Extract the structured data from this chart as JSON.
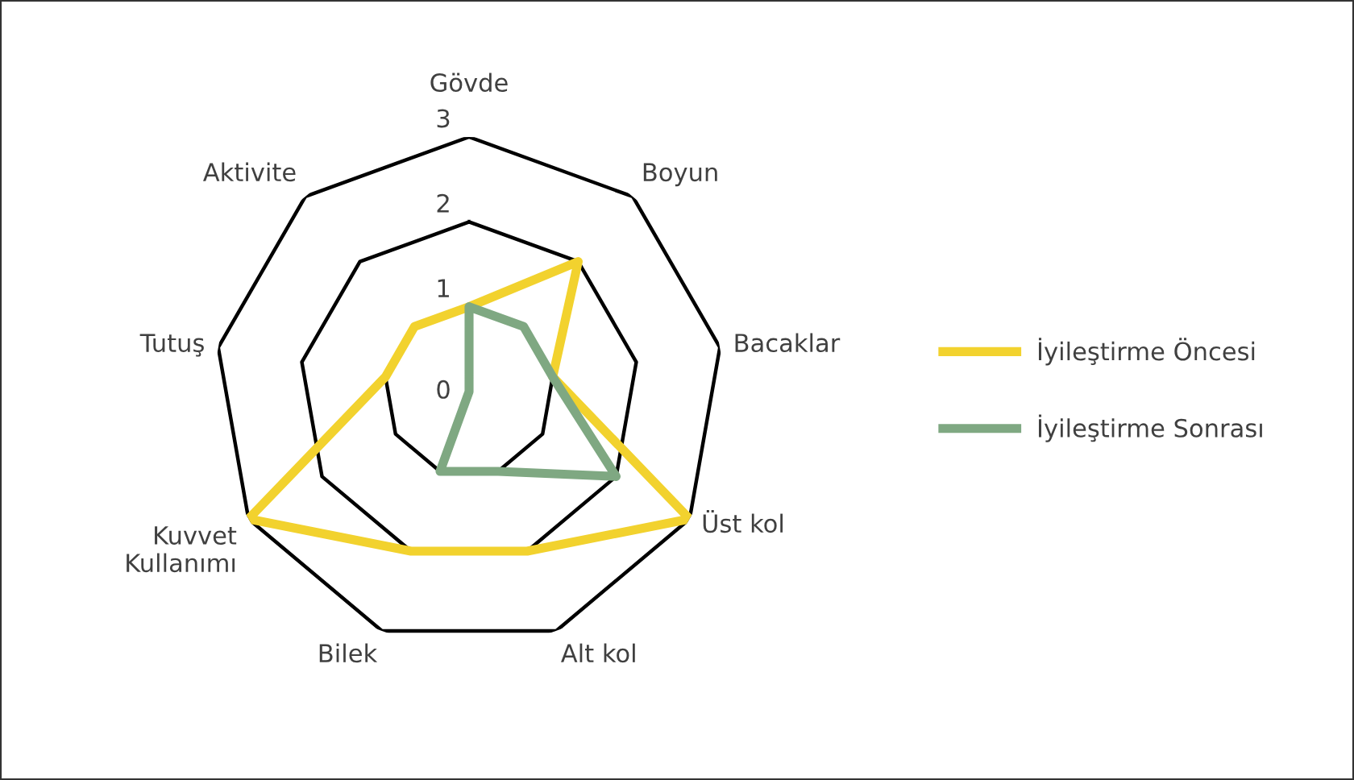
{
  "chart_data": {
    "type": "radar",
    "categories": [
      "Gövde",
      "Boyun",
      "Bacaklar",
      "Üst kol",
      "Alt kol",
      "Bilek",
      "Kuvvet Kullanımı",
      "Tutuş",
      "Aktivite"
    ],
    "series": [
      {
        "name": "İyileştirme Öncesi",
        "color": "#f2d22e",
        "values": [
          1,
          2,
          1,
          3,
          2,
          2,
          3,
          1,
          1
        ]
      },
      {
        "name": "İyileştirme Sonrası",
        "color": "#7fa882",
        "values": [
          1,
          1,
          1,
          2,
          1,
          1,
          0,
          0,
          0
        ]
      }
    ],
    "ylim": [
      0,
      3
    ],
    "yticks": [
      0,
      1,
      2,
      3
    ],
    "grid": true,
    "legend": "right",
    "marker": "none",
    "line_style": "solid"
  }
}
